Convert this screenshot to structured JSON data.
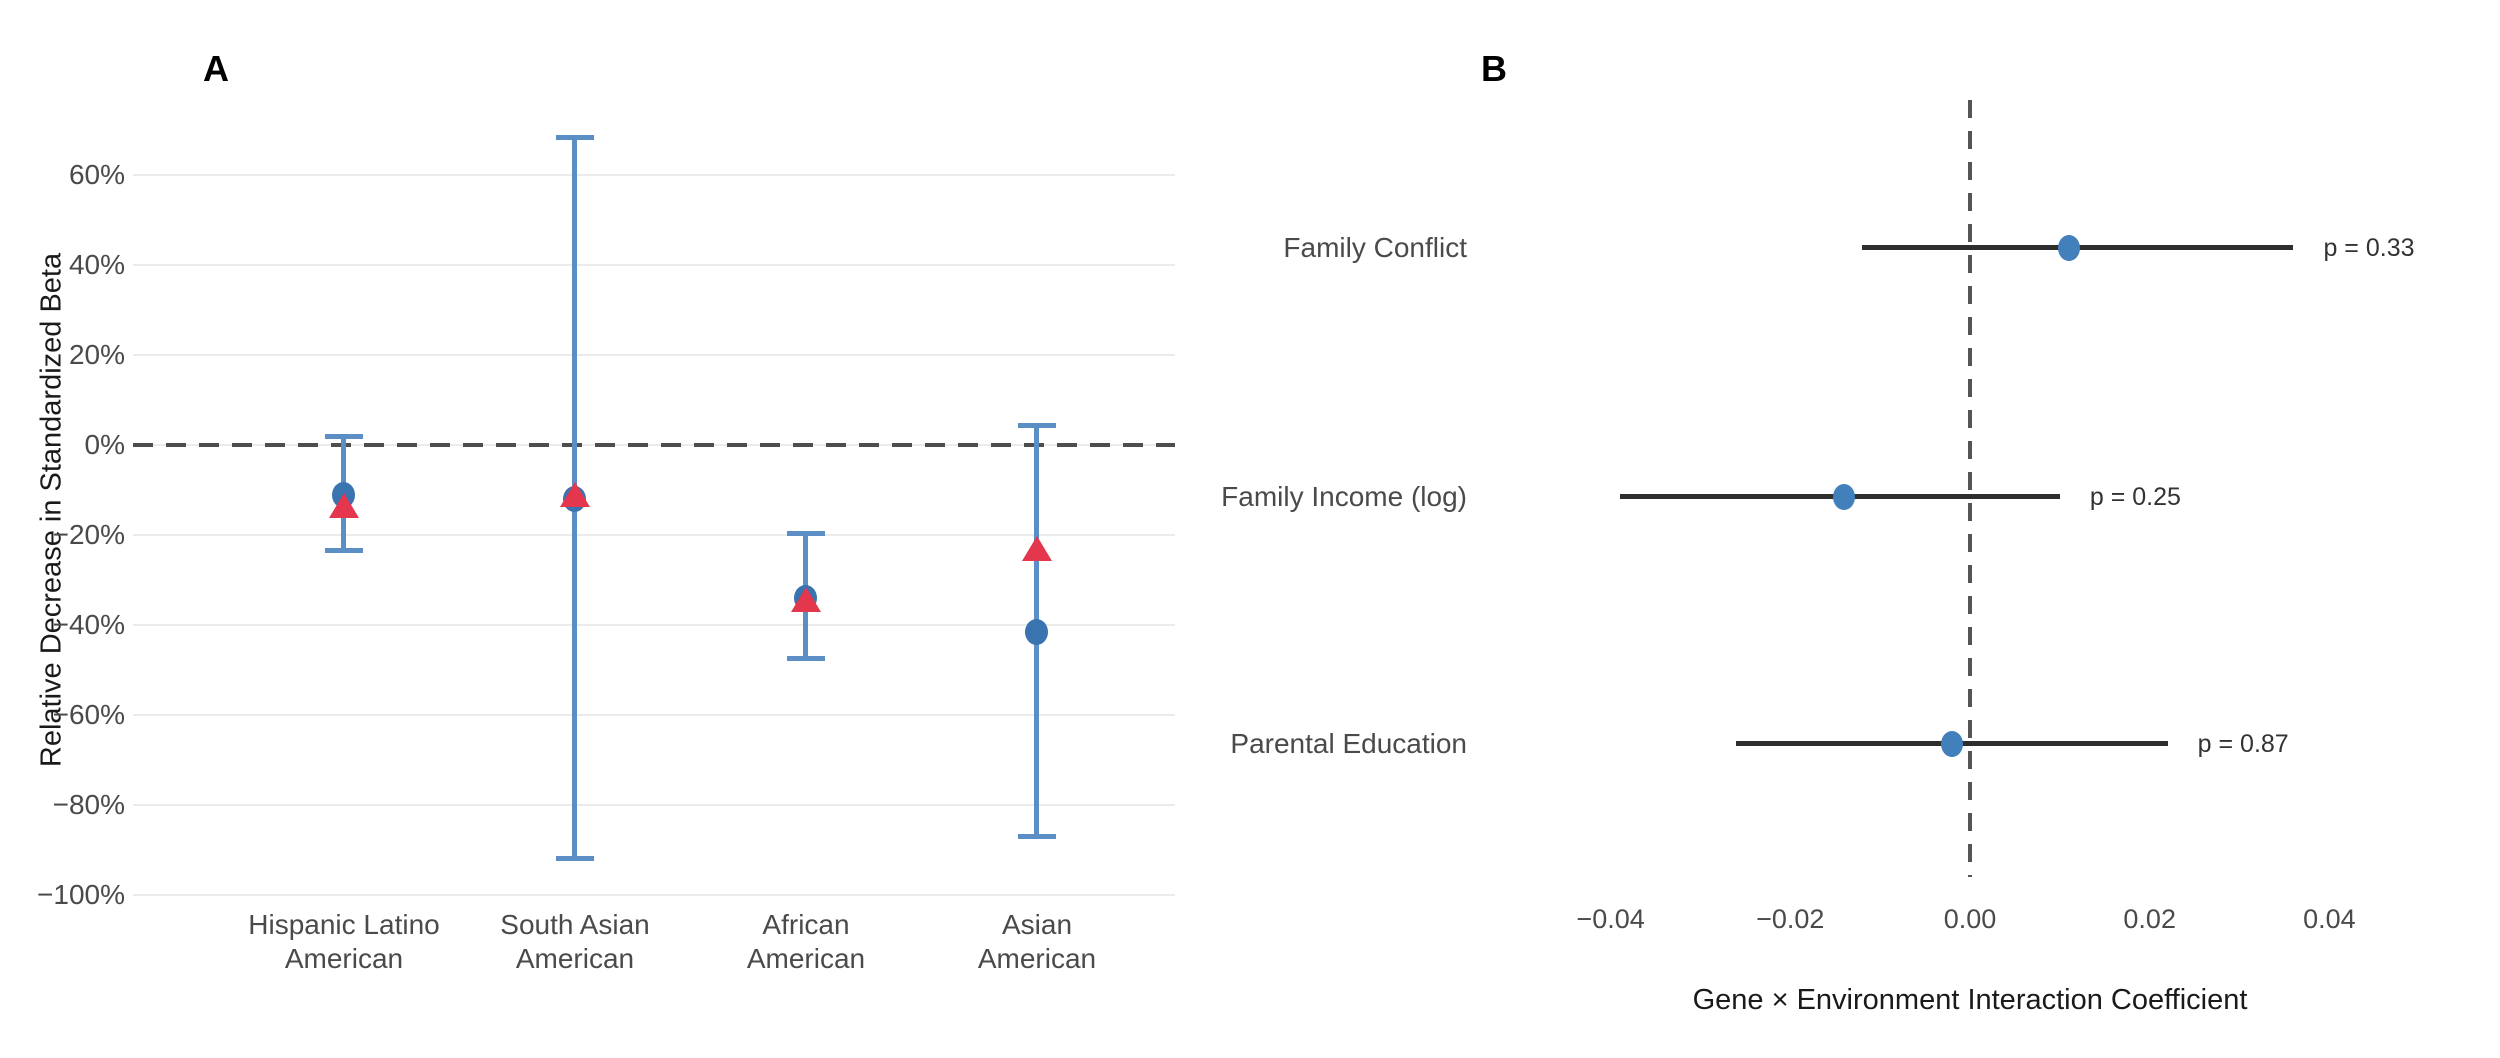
{
  "figure": {
    "background": "#ffffff"
  },
  "panels": {
    "a": {
      "letter": "A",
      "ylabel": "Relative Decrease in Standardized Beta"
    },
    "b": {
      "letter": "B",
      "xlabel": "Gene × Environment Interaction Coefficient"
    }
  },
  "colors": {
    "errorbar_blue": "#5a8ec5",
    "point_blue": "#3a74b0",
    "triangle_red": "#e4374d",
    "forest_dot_blue": "#4180ba",
    "ci_line": "#2e2e2e",
    "gridline": "#ebebeb",
    "dashed_line_a": "#4d4d4d",
    "dashed_line_b": "#555555"
  },
  "chart_data": [
    {
      "type": "scatter",
      "panel": "A",
      "ylabel": "Relative Decrease in Standardized Beta",
      "y_unit": "percent",
      "ylim": [
        -104,
        74
      ],
      "grid": true,
      "zero_reference_line": 0,
      "y_ticks": [
        {
          "value": 60,
          "label": "60%"
        },
        {
          "value": 40,
          "label": "40%"
        },
        {
          "value": 20,
          "label": "20%"
        },
        {
          "value": 0,
          "label": "0%"
        },
        {
          "value": -20,
          "label": "−20%"
        },
        {
          "value": -40,
          "label": "−40%"
        },
        {
          "value": -60,
          "label": "−60%"
        },
        {
          "value": -80,
          "label": "−80%"
        },
        {
          "value": -100,
          "label": "−100%"
        }
      ],
      "categories": [
        {
          "label_lines": [
            "Hispanic Latino",
            "American"
          ],
          "circle": -11,
          "triangle": -13.5,
          "ci_low": -23.5,
          "ci_high": 2
        },
        {
          "label_lines": [
            "South Asian",
            "American"
          ],
          "circle": -12,
          "triangle": -11,
          "ci_low": -92,
          "ci_high": 68.5
        },
        {
          "label_lines": [
            "African",
            "American"
          ],
          "circle": -34,
          "triangle": -34.5,
          "ci_low": -47.5,
          "ci_high": -19.5
        },
        {
          "label_lines": [
            "Asian",
            "American"
          ],
          "circle": -41.5,
          "triangle": -23,
          "ci_low": -87,
          "ci_high": 4.5
        }
      ],
      "series": [
        {
          "name": "circle-estimate",
          "marker": "circle",
          "color": "#3a74b0",
          "values": [
            -11,
            -12,
            -34,
            -41.5
          ]
        },
        {
          "name": "triangle-estimate",
          "marker": "triangle",
          "color": "#e4374d",
          "values": [
            -13.5,
            -11,
            -34.5,
            -23
          ]
        }
      ]
    },
    {
      "type": "forest",
      "panel": "B",
      "xlabel": "Gene × Environment Interaction Coefficient",
      "xlim": [
        -0.05,
        0.05
      ],
      "grid": false,
      "zero_reference_line": 0,
      "x_ticks": [
        {
          "value": -0.04,
          "label": "−0.04"
        },
        {
          "value": -0.02,
          "label": "−0.02"
        },
        {
          "value": 0,
          "label": "0.00"
        },
        {
          "value": 0.02,
          "label": "0.02"
        },
        {
          "value": 0.04,
          "label": "0.04"
        }
      ],
      "rows": [
        {
          "label": "Family Conflict",
          "estimate": 0.011,
          "ci_low": -0.012,
          "ci_high": 0.036,
          "p_label": "p = 0.33"
        },
        {
          "label": "Family Income (log)",
          "estimate": -0.014,
          "ci_low": -0.039,
          "ci_high": 0.01,
          "p_label": "p = 0.25"
        },
        {
          "label": "Parental Education",
          "estimate": -0.002,
          "ci_low": -0.026,
          "ci_high": 0.022,
          "p_label": "p = 0.87"
        }
      ]
    }
  ]
}
